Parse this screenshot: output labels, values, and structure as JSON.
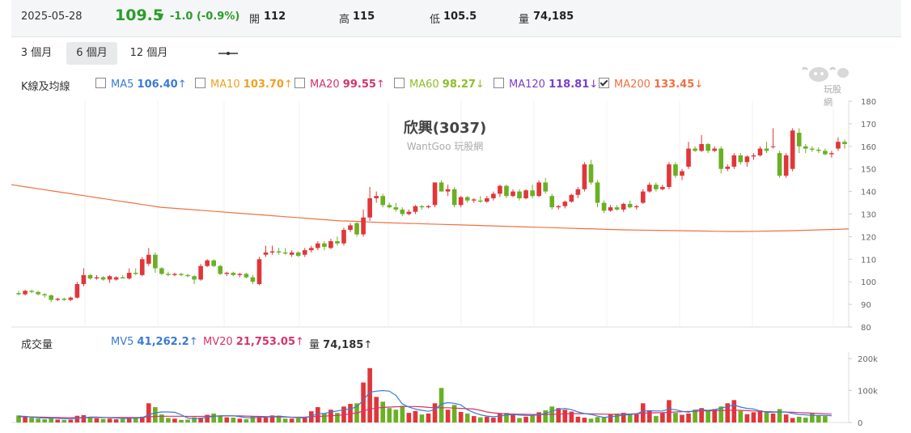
{
  "header": {
    "date": "2025-05-28",
    "price": "109.5",
    "change": "-1.0 (-0.9%)",
    "open_label": "開",
    "open": "112",
    "high_label": "高",
    "high": "115",
    "low_label": "低",
    "low": "105.5",
    "vol_label": "量",
    "vol": "74,185"
  },
  "tabs": [
    {
      "label": "3 個月",
      "active": false
    },
    {
      "label": "6 個月",
      "active": true
    },
    {
      "label": "12 個月",
      "active": false
    }
  ],
  "legend": {
    "title": "K線及均線",
    "items": [
      {
        "name": "MA5",
        "value": "106.40",
        "dir": "↑",
        "color": "#3a7bd5",
        "checked": false
      },
      {
        "name": "MA10",
        "value": "103.70",
        "dir": "↑",
        "color": "#f0a020",
        "checked": false
      },
      {
        "name": "MA20",
        "value": "99.55",
        "dir": "↑",
        "color": "#d6336c",
        "checked": false
      },
      {
        "name": "MA60",
        "value": "98.27",
        "dir": "↓",
        "color": "#8cbf26",
        "checked": false
      },
      {
        "name": "MA120",
        "value": "118.81",
        "dir": "↓",
        "color": "#7b3fc9",
        "checked": false
      },
      {
        "name": "MA200",
        "value": "133.45",
        "dir": "↓",
        "color": "#f07040",
        "checked": true
      }
    ]
  },
  "volume_legend": {
    "title": "成交量",
    "items": [
      {
        "name": "MV5",
        "value": "41,262.2",
        "dir": "↑",
        "color": "#3a7bd5"
      },
      {
        "name": "MV20",
        "value": "21,753.05",
        "dir": "↑",
        "color": "#d6336c"
      },
      {
        "name": "量",
        "value": "74,185",
        "dir": "↑",
        "color": "#333333"
      }
    ]
  },
  "logo_text": "玩股網",
  "chart_data": [
    {
      "type": "candlestick",
      "title": "欣興(3037)",
      "subtitle": "WantGoo 玩股網",
      "ylim": [
        80,
        180
      ],
      "yticks": [
        80,
        90,
        100,
        110,
        120,
        130,
        140,
        150,
        160,
        170,
        180
      ],
      "up_color": "#e0363a",
      "down_color": "#6ab023",
      "candles": [
        [
          95,
          96,
          94,
          94.5
        ],
        [
          94.5,
          96.5,
          94,
          96
        ],
        [
          96,
          96.5,
          95,
          95.5
        ],
        [
          95.5,
          96,
          94,
          94.5
        ],
        [
          94.5,
          95,
          93,
          94
        ],
        [
          94,
          94.5,
          91,
          92
        ],
        [
          92,
          93,
          91.5,
          92.5
        ],
        [
          92.5,
          93,
          91.5,
          92
        ],
        [
          92,
          93.5,
          91.5,
          93
        ],
        [
          93,
          100,
          92.5,
          99
        ],
        [
          99,
          106,
          98,
          103
        ],
        [
          103,
          103.5,
          101,
          101.5
        ],
        [
          101.5,
          103,
          101,
          102
        ],
        [
          102,
          102.5,
          100.5,
          101
        ],
        [
          101,
          103,
          99.5,
          102.5
        ],
        [
          101,
          102.5,
          100.5,
          102
        ],
        [
          102,
          103,
          101.5,
          101.5
        ],
        [
          101.5,
          106,
          101,
          104
        ],
        [
          104,
          106,
          103,
          103.5
        ],
        [
          103,
          111,
          102.5,
          110
        ],
        [
          108,
          115,
          107,
          112
        ],
        [
          112,
          113,
          104,
          106
        ],
        [
          106,
          106.5,
          103,
          103.5
        ],
        [
          103.5,
          104.5,
          102.5,
          103
        ],
        [
          103,
          104,
          102.5,
          103.5
        ],
        [
          103.5,
          104,
          102.5,
          103
        ],
        [
          103,
          103.5,
          102,
          102.5
        ],
        [
          102.5,
          103,
          99,
          101
        ],
        [
          101,
          108,
          100.5,
          107
        ],
        [
          107,
          110,
          106.5,
          109.5
        ],
        [
          109.5,
          110,
          106.5,
          107
        ],
        [
          107,
          107.5,
          103,
          103.5
        ],
        [
          103.5,
          104.5,
          102.5,
          104
        ],
        [
          104,
          104.5,
          102.5,
          103
        ],
        [
          103,
          104,
          102,
          103.5
        ],
        [
          103.5,
          104,
          101.5,
          102
        ],
        [
          102,
          103,
          99,
          100
        ],
        [
          99,
          111,
          98.5,
          110
        ],
        [
          112,
          116,
          111,
          113
        ],
        [
          113,
          116,
          112,
          113.5
        ],
        [
          113.5,
          115,
          112,
          113
        ],
        [
          113,
          115,
          112,
          112.5
        ],
        [
          112,
          114,
          111,
          113
        ],
        [
          113,
          113.5,
          111,
          111.5
        ],
        [
          112,
          115,
          111,
          114
        ],
        [
          114,
          116,
          113,
          115
        ],
        [
          115,
          118,
          114,
          117
        ],
        [
          117,
          118,
          114,
          115.5
        ],
        [
          115,
          119,
          114.5,
          118
        ],
        [
          118,
          120,
          116,
          117
        ],
        [
          117,
          124,
          116,
          123
        ],
        [
          123,
          126,
          122,
          125
        ],
        [
          126,
          126.5,
          120,
          121
        ],
        [
          121,
          132,
          120,
          128.5
        ],
        [
          128.5,
          142,
          127,
          137
        ],
        [
          137,
          140,
          135,
          138
        ],
        [
          138,
          139,
          133,
          134
        ],
        [
          134,
          135,
          132.5,
          133
        ],
        [
          133,
          135,
          131,
          132
        ],
        [
          132,
          133,
          129,
          130
        ],
        [
          130,
          132,
          129.5,
          131
        ],
        [
          131,
          134,
          130,
          133.5
        ],
        [
          133.5,
          134,
          132,
          133
        ],
        [
          133,
          134,
          132.5,
          133.5
        ],
        [
          134,
          144,
          133,
          144
        ],
        [
          144,
          145,
          140,
          140
        ],
        [
          140,
          143,
          138,
          141
        ],
        [
          141,
          142,
          133,
          134
        ],
        [
          134,
          138,
          133,
          137.5
        ],
        [
          137.5,
          138,
          135,
          136
        ],
        [
          136,
          137,
          135,
          136.5
        ],
        [
          136,
          138,
          135,
          135.5
        ],
        [
          135.5,
          138,
          135,
          137
        ],
        [
          137,
          140,
          136,
          139
        ],
        [
          139,
          143,
          137.5,
          142.5
        ],
        [
          142.5,
          143,
          137,
          138
        ],
        [
          138,
          141,
          137.5,
          140
        ],
        [
          140,
          141,
          136,
          137
        ],
        [
          137,
          141,
          136.5,
          140.5
        ],
        [
          140.5,
          143,
          137,
          138
        ],
        [
          138,
          145,
          137.5,
          144
        ],
        [
          144,
          146,
          139,
          140
        ],
        [
          138,
          139,
          132,
          133
        ],
        [
          133,
          134,
          132,
          133.5
        ],
        [
          133.5,
          136,
          132.5,
          135.5
        ],
        [
          135.5,
          139,
          135,
          138.5
        ],
        [
          138.5,
          142,
          137,
          141
        ],
        [
          141,
          153,
          140,
          152
        ],
        [
          152,
          154,
          143,
          144
        ],
        [
          144,
          145,
          133,
          135
        ],
        [
          135,
          136,
          130.5,
          131.5
        ],
        [
          131.5,
          134,
          131,
          133
        ],
        [
          133,
          134,
          131.5,
          132
        ],
        [
          132,
          135,
          131,
          134.5
        ],
        [
          134.5,
          136,
          132.5,
          133
        ],
        [
          133,
          134,
          132,
          133.5
        ],
        [
          135,
          141,
          134.5,
          140
        ],
        [
          140,
          144,
          139.5,
          143
        ],
        [
          143,
          144,
          140,
          141
        ],
        [
          141,
          143,
          140.5,
          142
        ],
        [
          142,
          153,
          141,
          152
        ],
        [
          152,
          153,
          146,
          147
        ],
        [
          147,
          150,
          145,
          149
        ],
        [
          151,
          162,
          150,
          159
        ],
        [
          159,
          160,
          157.5,
          158
        ],
        [
          158,
          165,
          157.5,
          161
        ],
        [
          161,
          161.5,
          157,
          158
        ],
        [
          158,
          160,
          157.5,
          159
        ],
        [
          159,
          160,
          148,
          150
        ],
        [
          150,
          152,
          149,
          151
        ],
        [
          151,
          157,
          150,
          156
        ],
        [
          156,
          157,
          152,
          153
        ],
        [
          153,
          156,
          151,
          155.5
        ],
        [
          155.5,
          157,
          154,
          156
        ],
        [
          156,
          160,
          155.5,
          159
        ],
        [
          159,
          162,
          157,
          158
        ],
        [
          160,
          168,
          159,
          160
        ],
        [
          157,
          158,
          146,
          147
        ],
        [
          147,
          157,
          146,
          156
        ],
        [
          150,
          168,
          149,
          167
        ],
        [
          166,
          168,
          157,
          160
        ],
        [
          160,
          161,
          157,
          159
        ],
        [
          159,
          160,
          157.5,
          158.5
        ],
        [
          158.5,
          159.5,
          157,
          158
        ],
        [
          158,
          159,
          156,
          156.5
        ],
        [
          156.5,
          158,
          155,
          157
        ],
        [
          159,
          164,
          158,
          162
        ],
        [
          162,
          163,
          159,
          161
        ]
      ],
      "ma200": [
        143,
        142,
        141,
        140,
        139,
        138,
        137,
        136,
        135,
        134,
        133,
        132.5,
        132,
        131.5,
        131,
        130.5,
        130,
        129.5,
        129,
        128.5,
        128,
        127.5,
        127,
        126.8,
        126.5,
        126.2,
        126,
        125.8,
        125.6,
        125.4,
        125.2,
        125,
        124.8,
        124.6,
        124.4,
        124.2,
        124,
        123.8,
        123.6,
        123.4,
        123.2,
        123,
        122.9,
        122.8,
        122.7,
        122.6,
        122.5,
        122.4,
        122.3,
        122.3,
        122.4,
        122.5,
        122.6,
        122.8,
        123,
        123.2,
        123.4
      ]
    },
    {
      "type": "bar",
      "title": "成交量",
      "ylim": [
        0,
        200000
      ],
      "yticks": [
        0,
        100000,
        200000
      ],
      "ytick_labels": [
        "0",
        "100k",
        "200k"
      ],
      "volumes": [
        22000,
        18000,
        15000,
        12000,
        10000,
        16000,
        9000,
        8000,
        9000,
        21000,
        23000,
        18000,
        13000,
        11000,
        12000,
        10000,
        11000,
        14000,
        16000,
        18000,
        60000,
        48000,
        25000,
        14000,
        12000,
        8000,
        9000,
        16000,
        15000,
        24000,
        28000,
        20000,
        16000,
        15000,
        12000,
        10000,
        19000,
        18000,
        16000,
        22000,
        21000,
        12000,
        12000,
        13000,
        16000,
        35000,
        48000,
        28000,
        40000,
        30000,
        50000,
        58000,
        60000,
        125000,
        170000,
        80000,
        65000,
        45000,
        40000,
        52000,
        30000,
        36000,
        25000,
        28000,
        60000,
        108000,
        40000,
        55000,
        33000,
        28000,
        20000,
        16000,
        18000,
        15000,
        28000,
        30000,
        28000,
        14000,
        18000,
        22000,
        32000,
        38000,
        50000,
        45000,
        40000,
        34000,
        18000,
        15000,
        12000,
        17000,
        16000,
        25000,
        28000,
        30000,
        24000,
        26000,
        60000,
        38000,
        20000,
        30000,
        70000,
        30000,
        24000,
        28000,
        40000,
        45000,
        38000,
        42000,
        50000,
        60000,
        70000,
        36000,
        26000,
        32000,
        38000,
        35000,
        28000,
        42000,
        25000,
        14000,
        18000,
        15000,
        30000,
        22000,
        20000
      ],
      "volume_dirs": "dddduddduuudduududuuduuudduuuduuddudduuuuududuuddudu",
      "mv5": [
        20000,
        19000,
        17000,
        15000,
        14000,
        14000,
        13000,
        12000,
        12000,
        13000,
        15000,
        17000,
        17000,
        16000,
        15000,
        14000,
        13000,
        13000,
        14000,
        15000,
        24000,
        30000,
        33000,
        33000,
        32000,
        24000,
        14000,
        12000,
        13000,
        16000,
        19000,
        21000,
        21000,
        21000,
        18000,
        15000,
        15000,
        16000,
        17000,
        18000,
        20000,
        18000,
        16000,
        15000,
        15000,
        20000,
        27000,
        28000,
        33000,
        36000,
        40000,
        42000,
        50000,
        70000,
        95000,
        98000,
        100000,
        98000,
        85000,
        58000,
        48000,
        42000,
        38000,
        35000,
        40000,
        58000,
        62000,
        60000,
        55000,
        40000,
        31000,
        24000,
        20000,
        18000,
        20000,
        23000,
        25000,
        23000,
        22000,
        22000,
        24000,
        28000,
        36000,
        41000,
        44000,
        40000,
        33000,
        28000,
        25000,
        20000,
        16000,
        18000,
        20000,
        23000,
        25000,
        27000,
        35000,
        37000,
        36000,
        36000,
        42000,
        40000,
        35000,
        32000,
        38000,
        40000,
        38000,
        40000,
        45000,
        50000,
        55000,
        48000,
        44000,
        42000,
        36000,
        32000,
        32000,
        33000,
        33000,
        28000,
        25000,
        24000,
        22000,
        22000,
        22000,
        21000
      ],
      "mv20": [
        18000,
        18000,
        17500,
        17000,
        16500,
        16000,
        15500,
        15000,
        15000,
        15000,
        15000,
        15500,
        15500,
        15500,
        15500,
        15500,
        15500,
        15500,
        15500,
        16000,
        17500,
        19000,
        19500,
        19500,
        19500,
        19500,
        19000,
        19000,
        19000,
        19500,
        20000,
        20500,
        20500,
        20500,
        20500,
        20000,
        19500,
        19000,
        18500,
        18000,
        17500,
        17000,
        16500,
        16500,
        17000,
        18000,
        19000,
        20000,
        21000,
        22000,
        24000,
        27000,
        30000,
        36000,
        42000,
        45000,
        47000,
        48000,
        49000,
        50000,
        50000,
        50000,
        49000,
        47000,
        46000,
        46000,
        46000,
        45000,
        44000,
        43000,
        42000,
        38000,
        33000,
        30000,
        28000,
        27000,
        26000,
        26000,
        25500,
        25000,
        25000,
        25000,
        25500,
        26000,
        27000,
        27500,
        27500,
        27500,
        27000,
        26500,
        26000,
        25500,
        25500,
        26000,
        26500,
        27500,
        29000,
        30000,
        30500,
        31000,
        32000,
        33000,
        34000,
        34500,
        35000,
        36000,
        36500,
        37000,
        37500,
        38000,
        38500,
        38000,
        37000,
        36000,
        35000,
        34000,
        33500,
        33000,
        32500,
        32000,
        31000,
        30000,
        29000,
        28000,
        27000,
        26000
      ]
    }
  ]
}
